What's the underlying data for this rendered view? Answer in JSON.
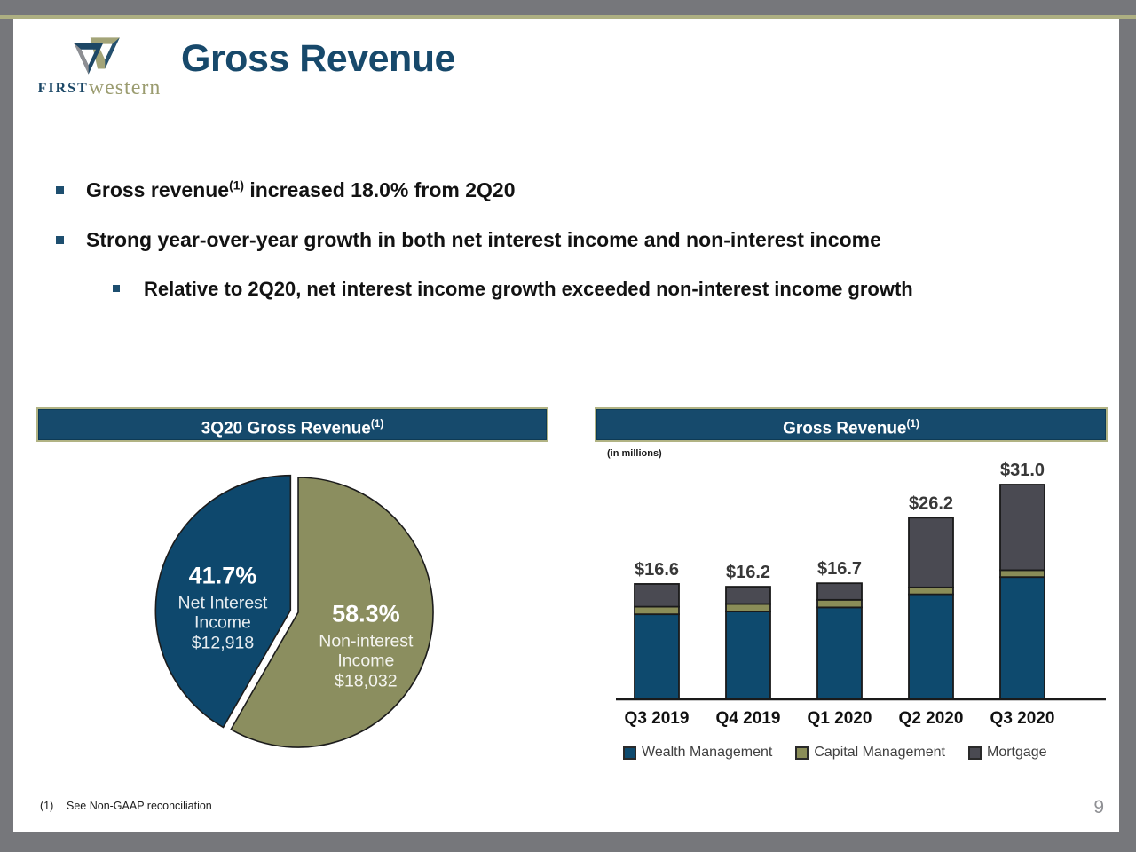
{
  "logo": {
    "first": "FIRST",
    "western": "western"
  },
  "title": "Gross Revenue",
  "bullets": [
    {
      "pre": "Gross revenue",
      "sup": "(1)",
      "post": " increased 18.0% from 2Q20"
    },
    {
      "pre": "Strong year-over-year growth in both net interest income and non-interest income",
      "sup": "",
      "post": ""
    },
    {
      "pre": "Relative to 2Q20, net interest income growth exceeded non-interest income growth",
      "sup": "",
      "post": ""
    }
  ],
  "pie_section": {
    "header": "3Q20 Gross Revenue",
    "header_sup": "(1)"
  },
  "bar_section": {
    "header": "Gross Revenue",
    "header_sup": "(1)",
    "units_note": "(in millions)"
  },
  "chart_data": [
    {
      "type": "pie",
      "title": "3Q20 Gross Revenue (1)",
      "rotation_deg": 209.9,
      "slices": [
        {
          "label": "Net Interest Income",
          "label_lines": [
            "Net Interest",
            "Income"
          ],
          "pct": 41.7,
          "pct_label": "41.7%",
          "amount": "$12,918",
          "color": "#0e486d",
          "exploded": true
        },
        {
          "label": "Non-interest Income",
          "label_lines": [
            "Non-interest",
            "Income"
          ],
          "pct": 58.3,
          "pct_label": "58.3%",
          "amount": "$18,032",
          "color": "#8b8e5f",
          "exploded": false
        }
      ]
    },
    {
      "type": "bar",
      "stacked": true,
      "title": "Gross Revenue (1)",
      "units": "in millions",
      "categories": [
        "Q3 2019",
        "Q4 2019",
        "Q1 2020",
        "Q2 2020",
        "Q3 2020"
      ],
      "series": [
        {
          "name": "Wealth Management",
          "color": "#0e4a6e",
          "values": [
            12.2,
            12.6,
            13.2,
            15.1,
            17.6
          ]
        },
        {
          "name": "Capital Management",
          "color": "#8a8d58",
          "values": [
            1.1,
            1.1,
            1.1,
            1.0,
            1.0
          ]
        },
        {
          "name": "Mortgage",
          "color": "#4a4a52",
          "values": [
            3.3,
            2.5,
            2.4,
            10.1,
            12.4
          ]
        }
      ],
      "totals": [
        "$16.6",
        "$16.2",
        "$16.7",
        "$26.2",
        "$31.0"
      ],
      "ylim": [
        0,
        33
      ],
      "grid": false,
      "legend_position": "bottom"
    }
  ],
  "legend": [
    {
      "label": "Wealth Management",
      "color": "#0e4a6e"
    },
    {
      "label": "Capital Management",
      "color": "#8a8d58"
    },
    {
      "label": "Mortgage",
      "color": "#4a4a52"
    }
  ],
  "footnote": {
    "marker": "(1)",
    "text": "See Non-GAAP reconciliation"
  },
  "page_number": "9",
  "colors": {
    "frame_gray": "#76777b",
    "accent_olive": "#adaf82",
    "header_navy": "#164a6c",
    "header_border": "#b1b384",
    "title_navy": "#17496b"
  }
}
